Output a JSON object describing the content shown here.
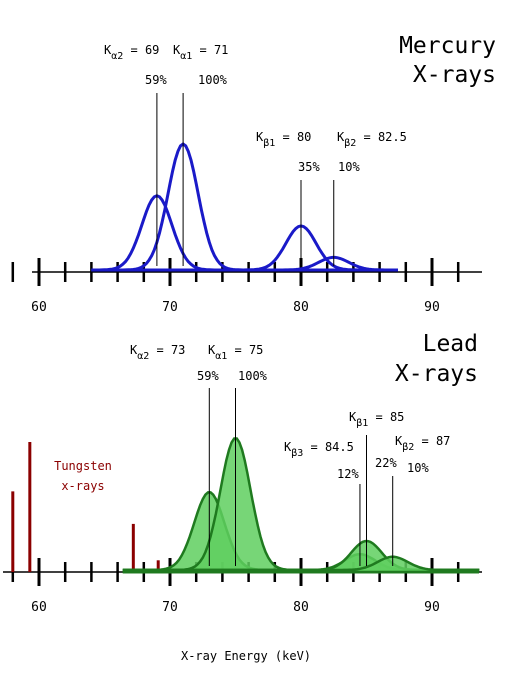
{
  "chart_data": [
    {
      "type": "line",
      "title": "Mercury X-rays",
      "title_lines": [
        "Mercury",
        "X-rays"
      ],
      "xlabel": "",
      "ylabel": "",
      "xlim": [
        60,
        95
      ],
      "x_ticks": [
        60,
        70,
        80,
        90
      ],
      "x_tick_labels": [
        "60",
        "70",
        "80",
        "90"
      ],
      "color": "#1a1ac8",
      "peaks": [
        {
          "line": "Kα2",
          "label_main": "K",
          "label_sub": "α2",
          "label_rest": " = 69",
          "energy": 69,
          "percent_label": "59%",
          "relative_intensity": 0.59
        },
        {
          "line": "Kα1",
          "label_main": "K",
          "label_sub": "α1",
          "label_rest": " = 71",
          "energy": 71,
          "percent_label": "100%",
          "relative_intensity": 1.0
        },
        {
          "line": "Kβ1",
          "label_main": "K",
          "label_sub": "β1",
          "label_rest": " = 80",
          "energy": 80,
          "percent_label": "35%",
          "relative_intensity": 0.35
        },
        {
          "line": "Kβ2",
          "label_main": "K",
          "label_sub": "β2",
          "label_rest": " = 82.5",
          "energy": 82.5,
          "percent_label": "10%",
          "relative_intensity": 0.1
        }
      ]
    },
    {
      "type": "area",
      "title": "Lead X-rays",
      "title_lines": [
        "Lead",
        "X-rays"
      ],
      "xlabel": "X-ray Energy (keV)",
      "ylabel": "",
      "xlim": [
        60,
        95
      ],
      "x_ticks": [
        60,
        70,
        80,
        90
      ],
      "x_tick_labels": [
        "60",
        "70",
        "80",
        "90"
      ],
      "color": "#1f7a1f",
      "fill_color": "#5fcf5f",
      "peaks": [
        {
          "line": "Kα2",
          "label_main": "K",
          "label_sub": "α2",
          "label_rest": " = 73",
          "energy": 73,
          "percent_label": "59%",
          "relative_intensity": 0.59
        },
        {
          "line": "Kα1",
          "label_main": "K",
          "label_sub": "α1",
          "label_rest": " = 75",
          "energy": 75,
          "percent_label": "100%",
          "relative_intensity": 1.0
        },
        {
          "line": "Kβ3",
          "label_main": "K",
          "label_sub": "β3",
          "label_rest": " = 84.5",
          "energy": 84.5,
          "percent_label": "12%",
          "relative_intensity": 0.12
        },
        {
          "line": "Kβ1",
          "label_main": "K",
          "label_sub": "β1",
          "label_rest": " = 85",
          "energy": 85,
          "percent_label": "22%",
          "relative_intensity": 0.22
        },
        {
          "line": "Kβ2",
          "label_main": "K",
          "label_sub": "β2",
          "label_rest": " = 87",
          "energy": 87,
          "percent_label": "10%",
          "relative_intensity": 0.1
        }
      ],
      "tungsten": {
        "label_lines": [
          "Tungsten",
          "x-rays"
        ],
        "color": "#8b0000",
        "lines": [
          {
            "energy": 58,
            "relative_height": 0.62
          },
          {
            "energy": 59.3,
            "relative_height": 1.0
          },
          {
            "energy": 67.2,
            "relative_height": 0.37
          },
          {
            "energy": 69.1,
            "relative_height": 0.09
          }
        ]
      }
    }
  ]
}
